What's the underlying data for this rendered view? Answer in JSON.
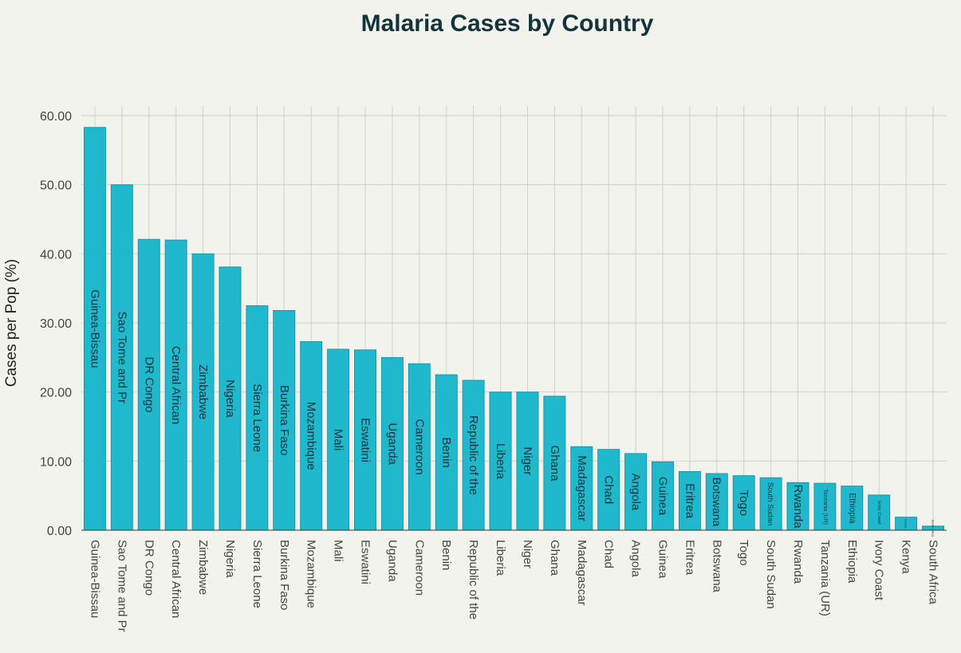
{
  "chart_data": {
    "type": "bar",
    "title": "Malaria Cases by Country",
    "xlabel": "",
    "ylabel": "Cases per Pop (%)",
    "ylim": [
      0,
      60
    ],
    "yticks": [
      "0.00",
      "10.00",
      "20.00",
      "30.00",
      "40.00",
      "50.00",
      "60.00"
    ],
    "grid": true,
    "bar_color": "#1fb8cd",
    "categories": [
      "Guinea-Bissau",
      "Sao Tome and Pr",
      "DR Congo",
      "Central African",
      "Zimbabwe",
      "Nigeria",
      "Sierra Leone",
      "Burkina Faso",
      "Mozambique",
      "Mali",
      "Eswatini",
      "Uganda",
      "Cameroon",
      "Benin",
      "Republic of the",
      "Liberia",
      "Niger",
      "Ghana",
      "Madagascar",
      "Chad",
      "Angola",
      "Guinea",
      "Eritrea",
      "Botswana",
      "Togo",
      "South Sudan",
      "Rwanda",
      "Tanzania (UR)",
      "Ethiopia",
      "Ivory Coast",
      "Kenya",
      "South Africa"
    ],
    "values": [
      58.3,
      50.0,
      42.1,
      42.0,
      40.0,
      38.1,
      32.5,
      31.8,
      27.3,
      26.2,
      26.1,
      25.0,
      24.1,
      22.5,
      21.7,
      20.0,
      20.0,
      19.4,
      12.1,
      11.7,
      11.1,
      9.9,
      8.5,
      8.2,
      7.9,
      7.6,
      6.9,
      6.8,
      6.4,
      5.1,
      1.9,
      0.6
    ]
  }
}
